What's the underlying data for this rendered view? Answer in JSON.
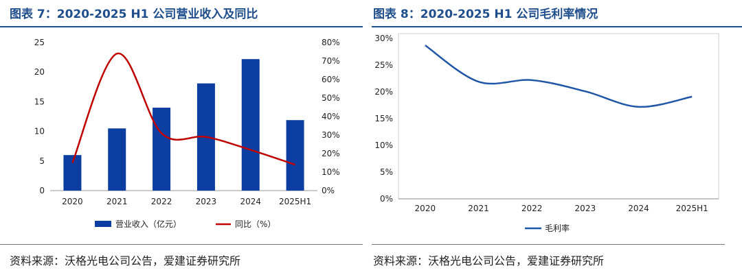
{
  "colors": {
    "title": "#1f4e8c",
    "bar": "#0b3ea0",
    "yoy_line": "#c00000",
    "margin_line": "#1f56a6"
  },
  "chart_data": [
    {
      "type": "bar",
      "title": "图表 7：2020-2025 H1 公司营业收入及同比",
      "categories": [
        "2020",
        "2021",
        "2022",
        "2023",
        "2024",
        "2025H1"
      ],
      "series": [
        {
          "name": "营业收入（亿元）",
          "type": "bar",
          "axis": "left",
          "values": [
            6.0,
            10.5,
            14.0,
            18.1,
            22.2,
            11.9
          ]
        },
        {
          "name": "同比（%）",
          "type": "line",
          "axis": "right",
          "values": [
            15,
            74,
            31,
            29,
            22,
            14
          ]
        }
      ],
      "y_left": {
        "min": 0,
        "max": 25,
        "ticks": [
          "0",
          "5",
          "10",
          "15",
          "20",
          "25"
        ]
      },
      "y_right": {
        "min": 0,
        "max": 80,
        "ticks": [
          "0%",
          "10%",
          "20%",
          "30%",
          "40%",
          "50%",
          "60%",
          "70%",
          "80%"
        ]
      },
      "legend": [
        "营业收入（亿元）",
        "同比（%）"
      ],
      "source": "资料来源：沃格光电公司公告，爱建证券研究所"
    },
    {
      "type": "line",
      "title": "图表 8：2020-2025 H1 公司毛利率情况",
      "categories": [
        "2020",
        "2021",
        "2022",
        "2023",
        "2024",
        "2025H1"
      ],
      "series": [
        {
          "name": "毛利率",
          "values": [
            28.7,
            21.9,
            22.2,
            20.1,
            17.2,
            19.1
          ]
        }
      ],
      "y": {
        "min": 0,
        "max": 30,
        "ticks": [
          "0%",
          "5%",
          "10%",
          "15%",
          "20%",
          "25%",
          "30%"
        ]
      },
      "legend": [
        "毛利率"
      ],
      "source": "资料来源：沃格光电公司公告，爱建证券研究所"
    }
  ]
}
